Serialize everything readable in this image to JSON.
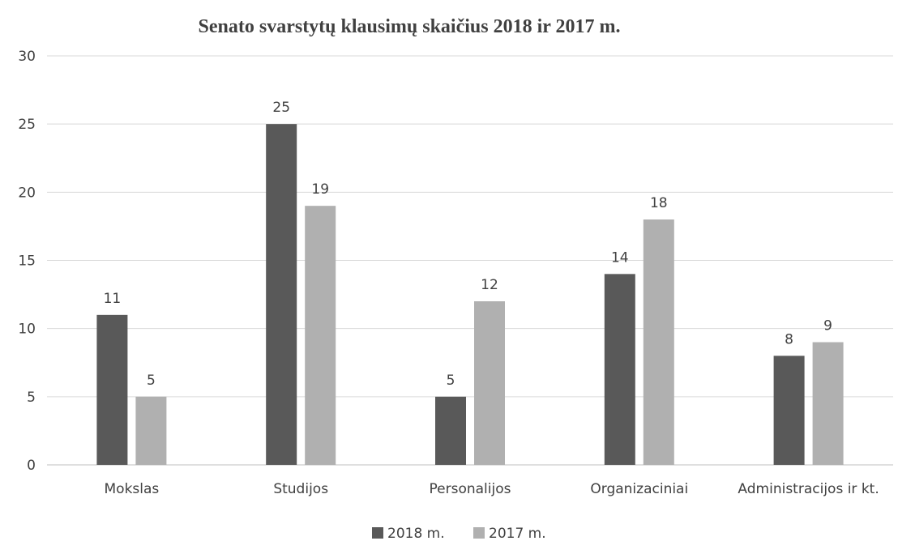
{
  "chart_data": {
    "type": "bar",
    "title": "Senato svarstytų klausimų skaičius 2018 ir 2017  m.",
    "categories": [
      "Mokslas",
      "Studijos",
      "Personalijos",
      "Organizaciniai",
      "Administracijos ir kt."
    ],
    "series": [
      {
        "name": "2018 m.",
        "color": "#595959",
        "values": [
          11,
          25,
          5,
          14,
          8
        ]
      },
      {
        "name": "2017 m.",
        "color": "#b0b0b0",
        "values": [
          5,
          19,
          12,
          18,
          9
        ]
      }
    ],
    "ylim": [
      0,
      30
    ],
    "yticks": [
      0,
      5,
      10,
      15,
      20,
      25,
      30
    ],
    "grid": true,
    "legend_position": "bottom"
  }
}
